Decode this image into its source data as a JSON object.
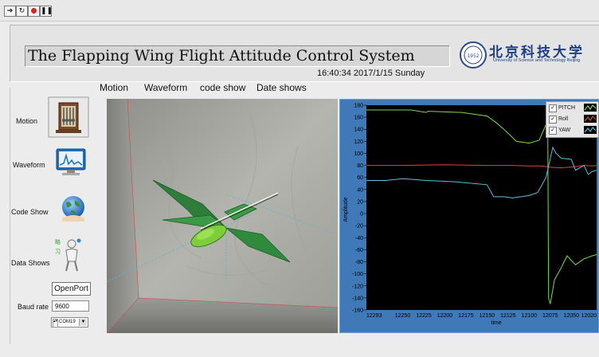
{
  "toolbar": {
    "buttons": [
      "run-arrow",
      "run-continuous",
      "abort",
      "pause"
    ]
  },
  "header": {
    "title": "The Flapping Wing Flight Attitude Control System",
    "datetime": "16:40:34 2017/1/15 Sunday",
    "logo_cn": "北京科技大学",
    "logo_en": "University of Science and Technology Beijing"
  },
  "tabs": [
    "Motion",
    "Waveform",
    "code show",
    "Date shows"
  ],
  "nav": [
    {
      "label": "Motion",
      "icon": "motion-icon"
    },
    {
      "label": "Waveform",
      "icon": "waveform-icon"
    },
    {
      "label": "Code Show",
      "icon": "globe-icon"
    },
    {
      "label": "Data Shows",
      "icon": "person-icon"
    }
  ],
  "controls": {
    "open_port": "OpenPort",
    "baud_label": "Baud rate",
    "baud_value": "9600",
    "com_value": "COM19"
  },
  "chart_data": {
    "type": "line",
    "ylabel": "Amplitude",
    "xlabel": "time",
    "ylim": [
      -160,
      180
    ],
    "yticks": [
      180,
      160,
      140,
      120,
      100,
      80,
      60,
      40,
      20,
      0,
      -20,
      -40,
      -60,
      -80,
      -100,
      -120,
      -140,
      -160
    ],
    "xlim": [
      12293,
      12020
    ],
    "xticks": [
      12293,
      12250,
      12225,
      12200,
      12175,
      12150,
      12125,
      12100,
      12075,
      12050,
      12020
    ],
    "xtick_labels": [
      "12293",
      "12250",
      "12225",
      "12200",
      "12175",
      "12150",
      "12125",
      "12100",
      "12075",
      "12050",
      "12020"
    ],
    "grid": false,
    "legend_position": "top-right",
    "series": [
      {
        "name": "PITCH",
        "color": "#7cdc44",
        "x": [
          12293,
          12270,
          12240,
          12222,
          12220,
          12180,
          12150,
          12140,
          12130,
          12115,
          12100,
          12088,
          12080,
          12078,
          12077,
          12075,
          12070,
          12062,
          12055,
          12045,
          12035,
          12025,
          12020
        ],
        "y": [
          172,
          172,
          172,
          168,
          170,
          168,
          162,
          152,
          140,
          120,
          117,
          122,
          148,
          160,
          -140,
          -150,
          -110,
          -90,
          -70,
          -85,
          -75,
          -70,
          -68
        ]
      },
      {
        "name": "Roll",
        "color": "#e0453a",
        "x": [
          12293,
          12250,
          12200,
          12150,
          12120,
          12100,
          12085,
          12075,
          12062,
          12045,
          12035,
          12025,
          12020
        ],
        "y": [
          80,
          80,
          81,
          80,
          80,
          79,
          79,
          77,
          76,
          78,
          80,
          79,
          80
        ]
      },
      {
        "name": "YAW",
        "color": "#5cc2d8",
        "x": [
          12293,
          12270,
          12250,
          12222,
          12190,
          12150,
          12142,
          12130,
          12120,
          12100,
          12090,
          12080,
          12072,
          12068,
          12062,
          12050,
          12045,
          12035,
          12030,
          12025,
          12020
        ],
        "y": [
          55,
          55,
          58,
          55,
          53,
          48,
          28,
          28,
          26,
          30,
          35,
          60,
          110,
          100,
          92,
          90,
          72,
          80,
          65,
          70,
          72
        ]
      }
    ]
  }
}
